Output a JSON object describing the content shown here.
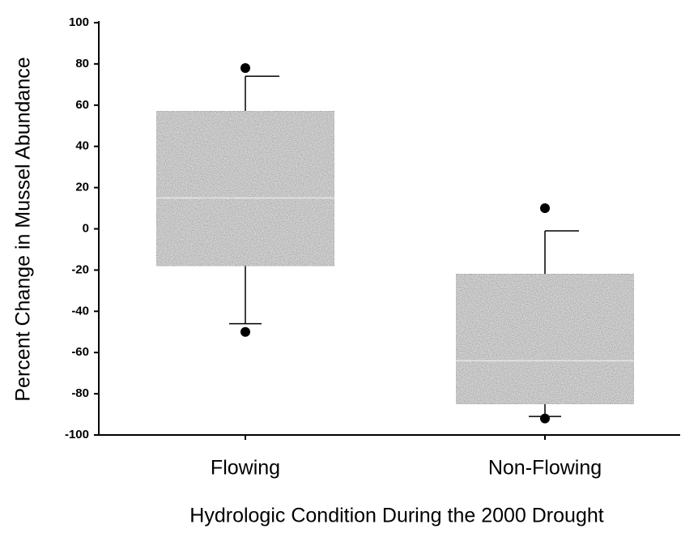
{
  "chart_data": {
    "type": "box",
    "y_label": "Percent Change in Mussel Abundance",
    "x_label": "Hydrologic Condition During the 2000 Drought",
    "categories": [
      "Flowing",
      "Non-Flowing"
    ],
    "boxes": [
      {
        "whisker_low": -46,
        "q1": -18,
        "median": 15,
        "q3": 57,
        "whisker_high": 74,
        "outliers": [
          78,
          -50
        ]
      },
      {
        "whisker_low": -91,
        "q1": -85,
        "median": -64,
        "q3": -22,
        "whisker_high": -1,
        "outliers": [
          10,
          -92
        ]
      }
    ],
    "color": "#8e8e8e",
    "ylim": [
      -100,
      100
    ],
    "yticks": [
      -100,
      -80,
      -60,
      -40,
      -20,
      0,
      20,
      40,
      60,
      80,
      100
    ]
  }
}
